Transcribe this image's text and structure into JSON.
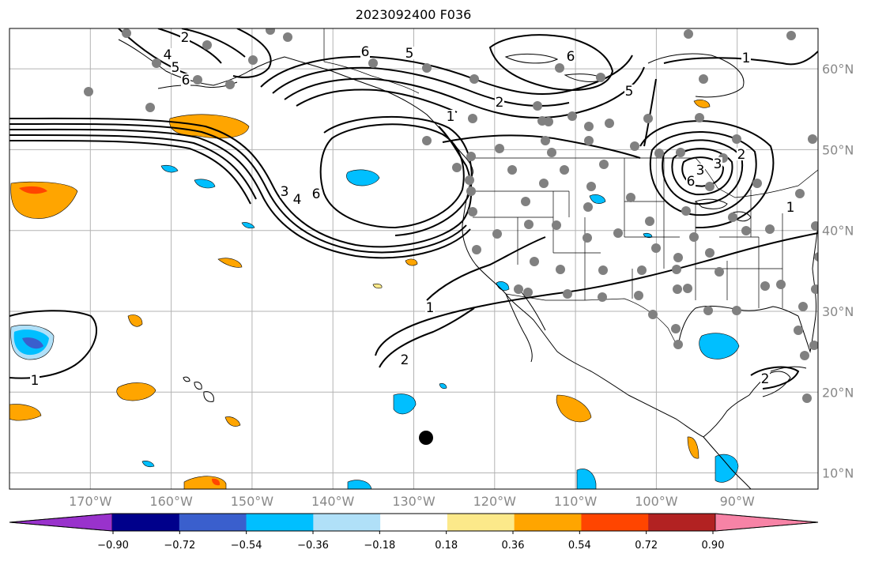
{
  "title": "2023092400 F036",
  "map": {
    "lon_range": [
      -180,
      -80
    ],
    "lat_range": [
      8,
      65
    ],
    "longitude_labels": [
      "170°W",
      "160°W",
      "150°W",
      "140°W",
      "130°W",
      "120°W",
      "110°W",
      "100°W",
      "90°W"
    ],
    "latitude_labels": [
      "60°N",
      "50°N",
      "40°N",
      "30°N",
      "20°N",
      "10°N"
    ],
    "grid": true,
    "grid_color": "#b3b3b3",
    "coastline_color": "#000000",
    "station_marker_color": "#808080",
    "highlight_marker_color": "#000000",
    "contour_labels": [
      "6",
      "5",
      "2",
      "4",
      "5",
      "6",
      "6",
      "5",
      "1",
      "1",
      "2",
      "3",
      "4",
      "6",
      "1",
      "2",
      "1",
      "3",
      "2",
      "6",
      "3",
      "2",
      "1"
    ]
  },
  "colorbar": {
    "tick_labels": [
      "−0.90",
      "−0.72",
      "−0.54",
      "−0.36",
      "−0.18",
      "0.18",
      "0.36",
      "0.54",
      "0.72",
      "0.90"
    ],
    "colors": [
      "#9932cc",
      "#00008b",
      "#3a5fcd",
      "#00bfff",
      "#b0e0f8",
      "#ffffff",
      "#fce98a",
      "#ffa500",
      "#ff4500",
      "#b22222",
      "#f783a6"
    ]
  }
}
